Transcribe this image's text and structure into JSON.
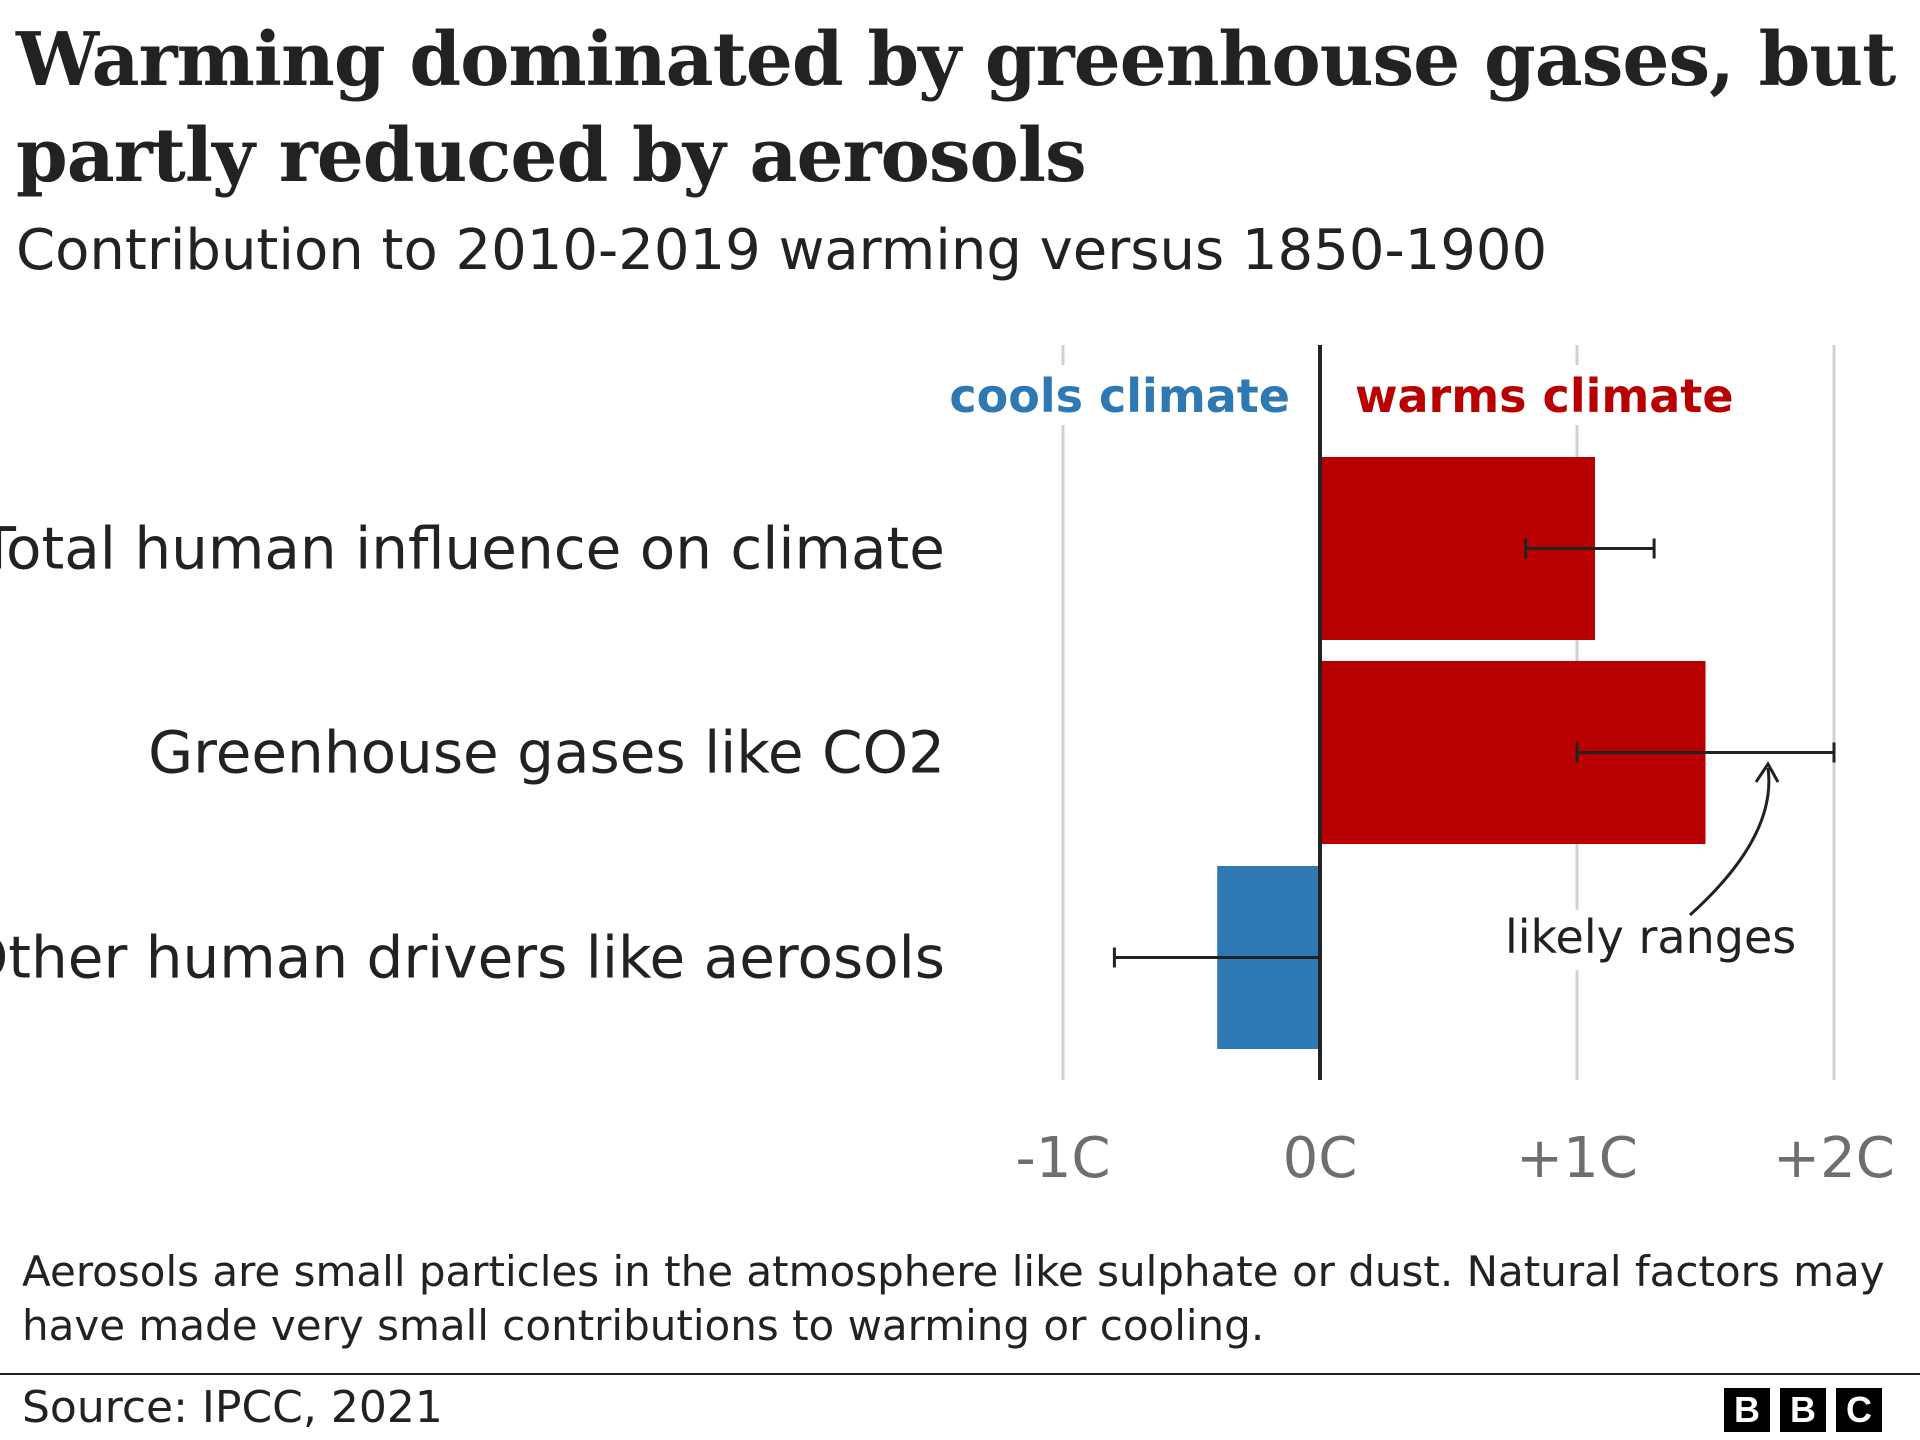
{
  "title": "Warming dominated by greenhouse gases, but partly reduced by aerosols",
  "subtitle": "Contribution to 2010-2019 warming versus 1850-1900",
  "chart_data": {
    "type": "bar",
    "orientation": "horizontal",
    "categories": [
      "Total human influence on climate",
      "Greenhouse gases like CO2",
      "Other human drivers like aerosols"
    ],
    "values": [
      1.07,
      1.5,
      -0.4
    ],
    "likely_ranges": [
      [
        0.8,
        1.3
      ],
      [
        1.0,
        2.0
      ],
      [
        -0.8,
        0.0
      ]
    ],
    "xlim": [
      -1,
      2
    ],
    "xticks": [
      -1,
      0,
      1,
      2
    ],
    "xtick_labels": [
      "-1C",
      "0C",
      "+1C",
      "+2C"
    ],
    "grid": "vertical",
    "labels": {
      "cools": "cools climate",
      "warms": "warms climate"
    },
    "annotation": "likely ranges",
    "colors": {
      "warm": "#b80000",
      "cool": "#2e79b4"
    }
  },
  "note": "Aerosols are small particles in the atmosphere like sulphate or dust. Natural factors may have made very small contributions to warming or cooling.",
  "source": "Source: IPCC, 2021",
  "logo": [
    "B",
    "B",
    "C"
  ]
}
